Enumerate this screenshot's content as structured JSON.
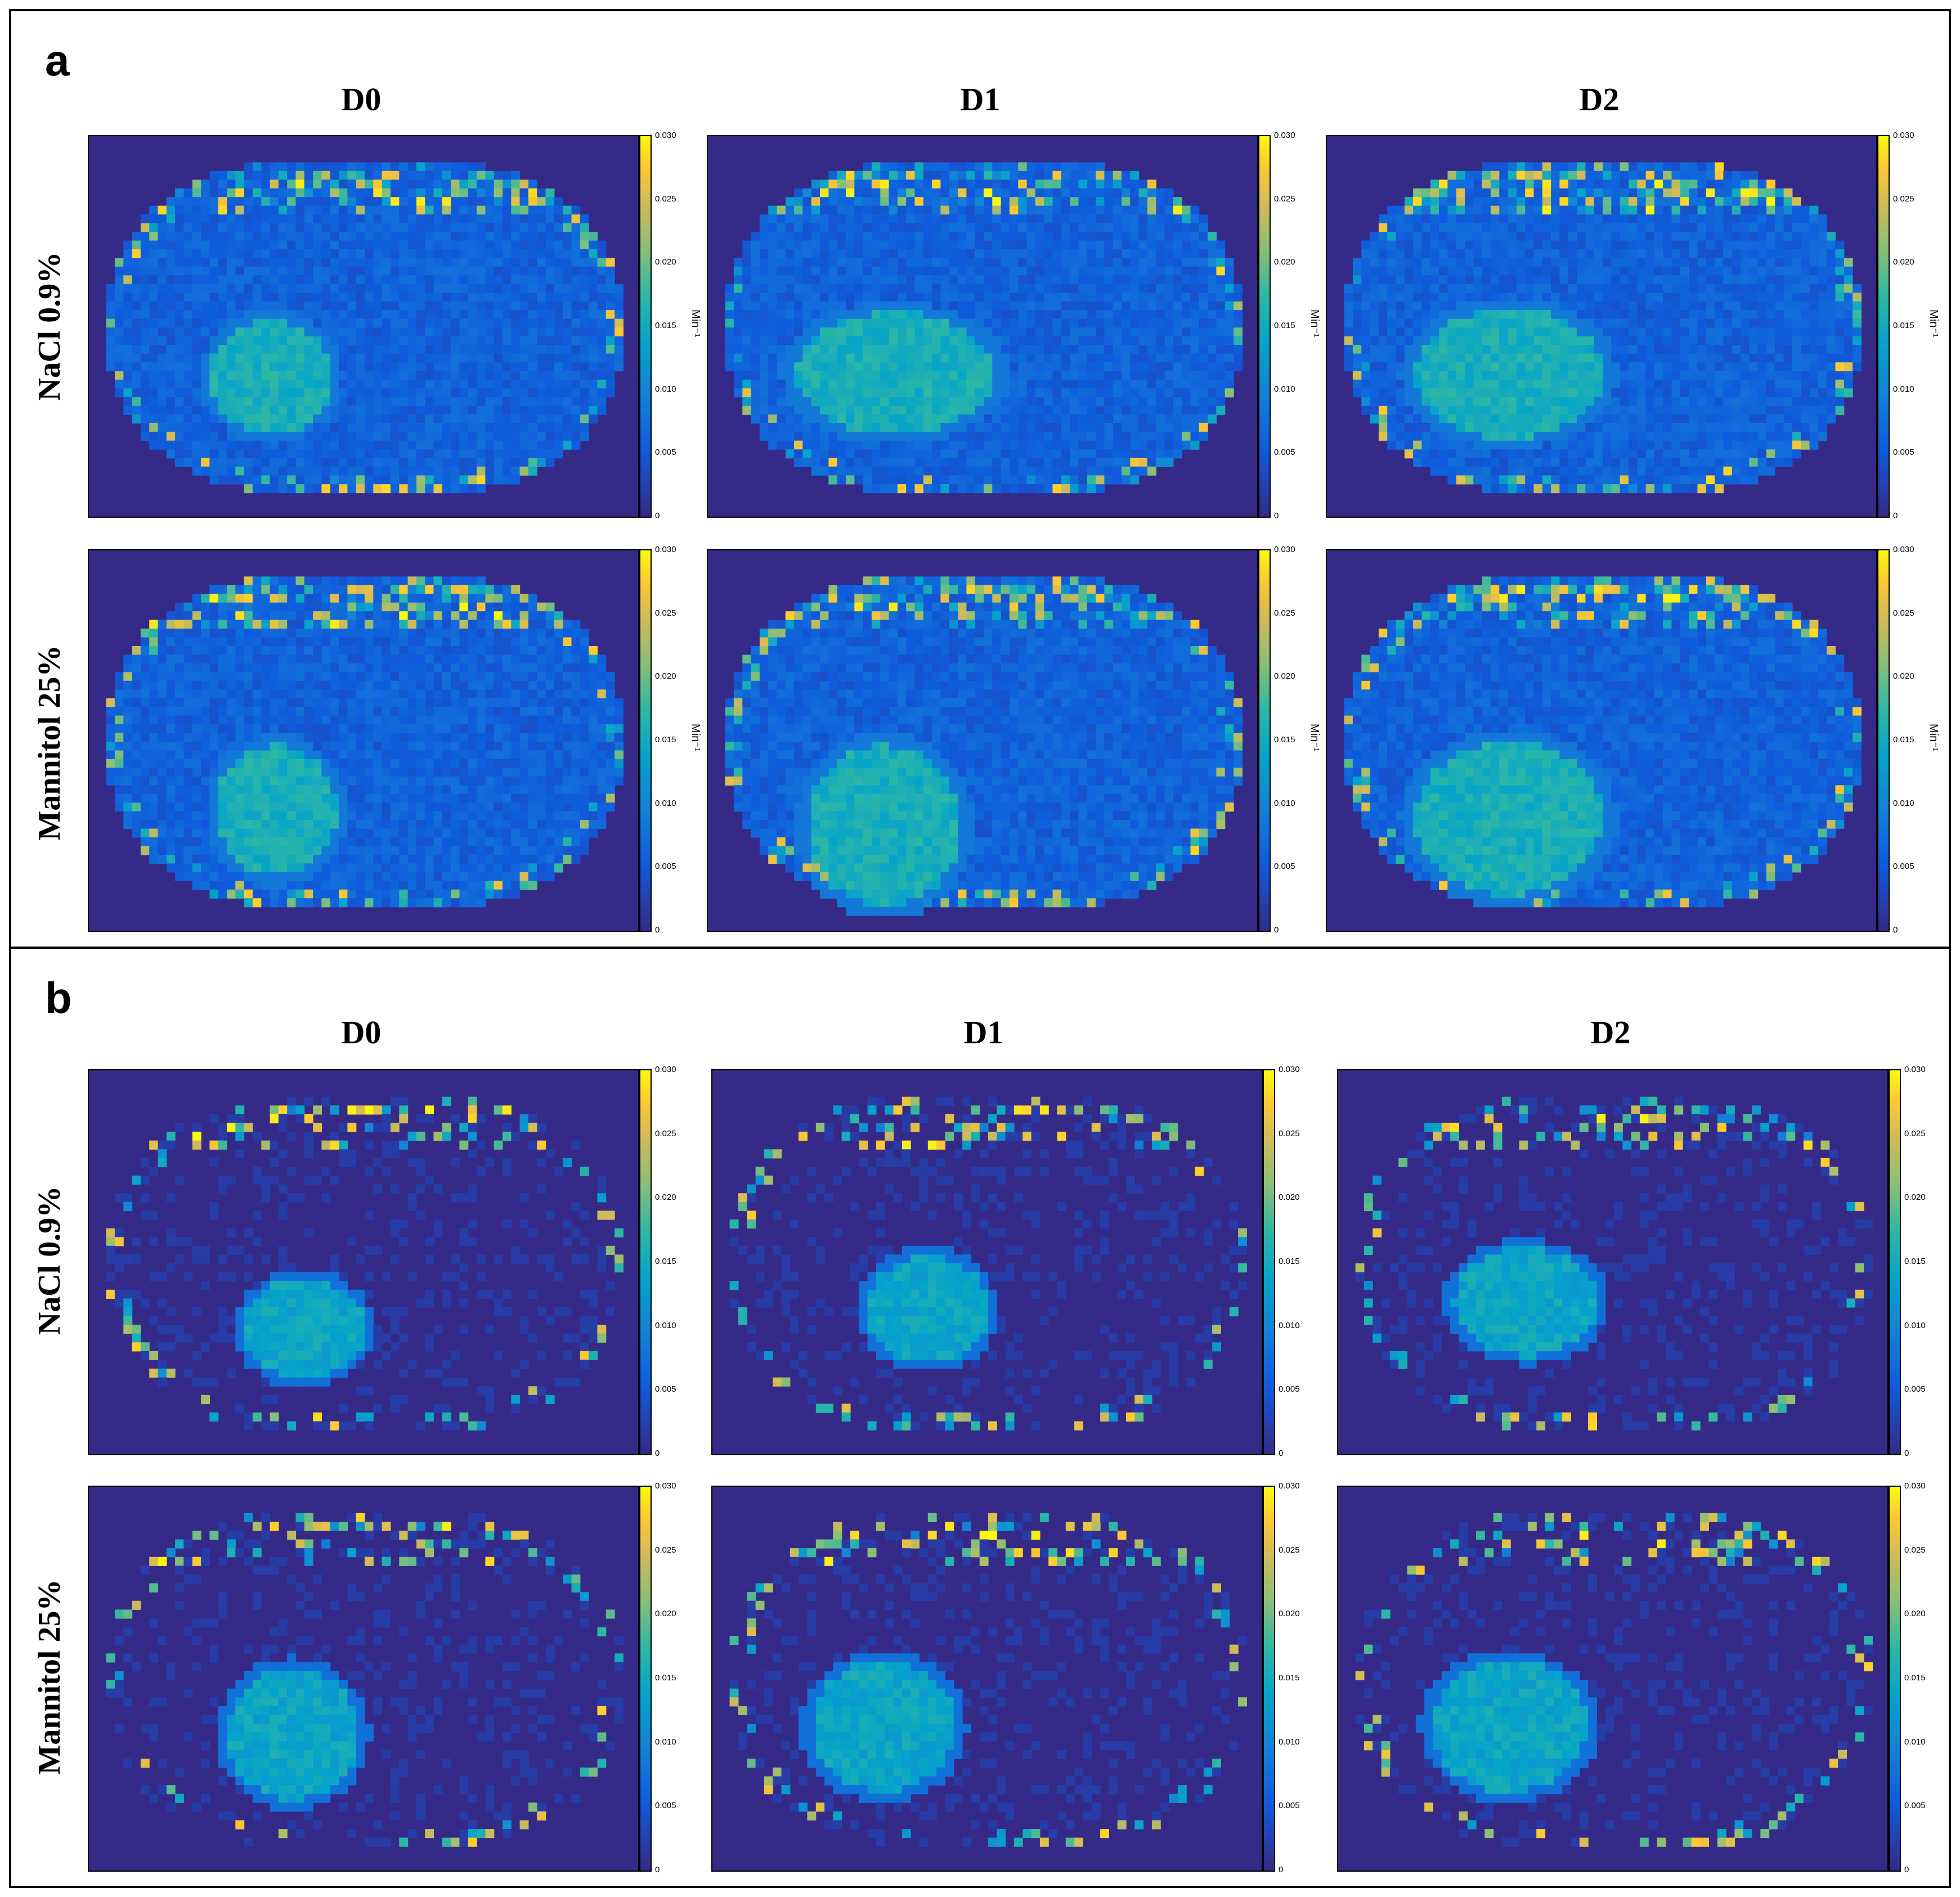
{
  "colormap": {
    "low": "#352a87",
    "mid": "#06a4ca",
    "high": "#f9fb0e"
  },
  "panels": [
    {
      "letter": "a",
      "columns": [
        "D0",
        "D1",
        "D2"
      ],
      "rows": [
        "NaCl 0.9%",
        "Mannitol 25%"
      ],
      "colorbar": {
        "ticks": [
          "0.030",
          "0.025",
          "0.020",
          "0.015",
          "0.010",
          "0.005",
          "0"
        ],
        "unit": "Min⁻¹"
      }
    },
    {
      "letter": "b",
      "columns": [
        "D0",
        "D1",
        "D2"
      ],
      "rows": [
        "NaCl 0.9%",
        "Mannitol 25%"
      ],
      "colorbar": {
        "ticks": [
          "0.030",
          "0.025",
          "0.020",
          "0.015",
          "0.010",
          "0.005",
          "0"
        ],
        "unit": ""
      }
    }
  ]
}
